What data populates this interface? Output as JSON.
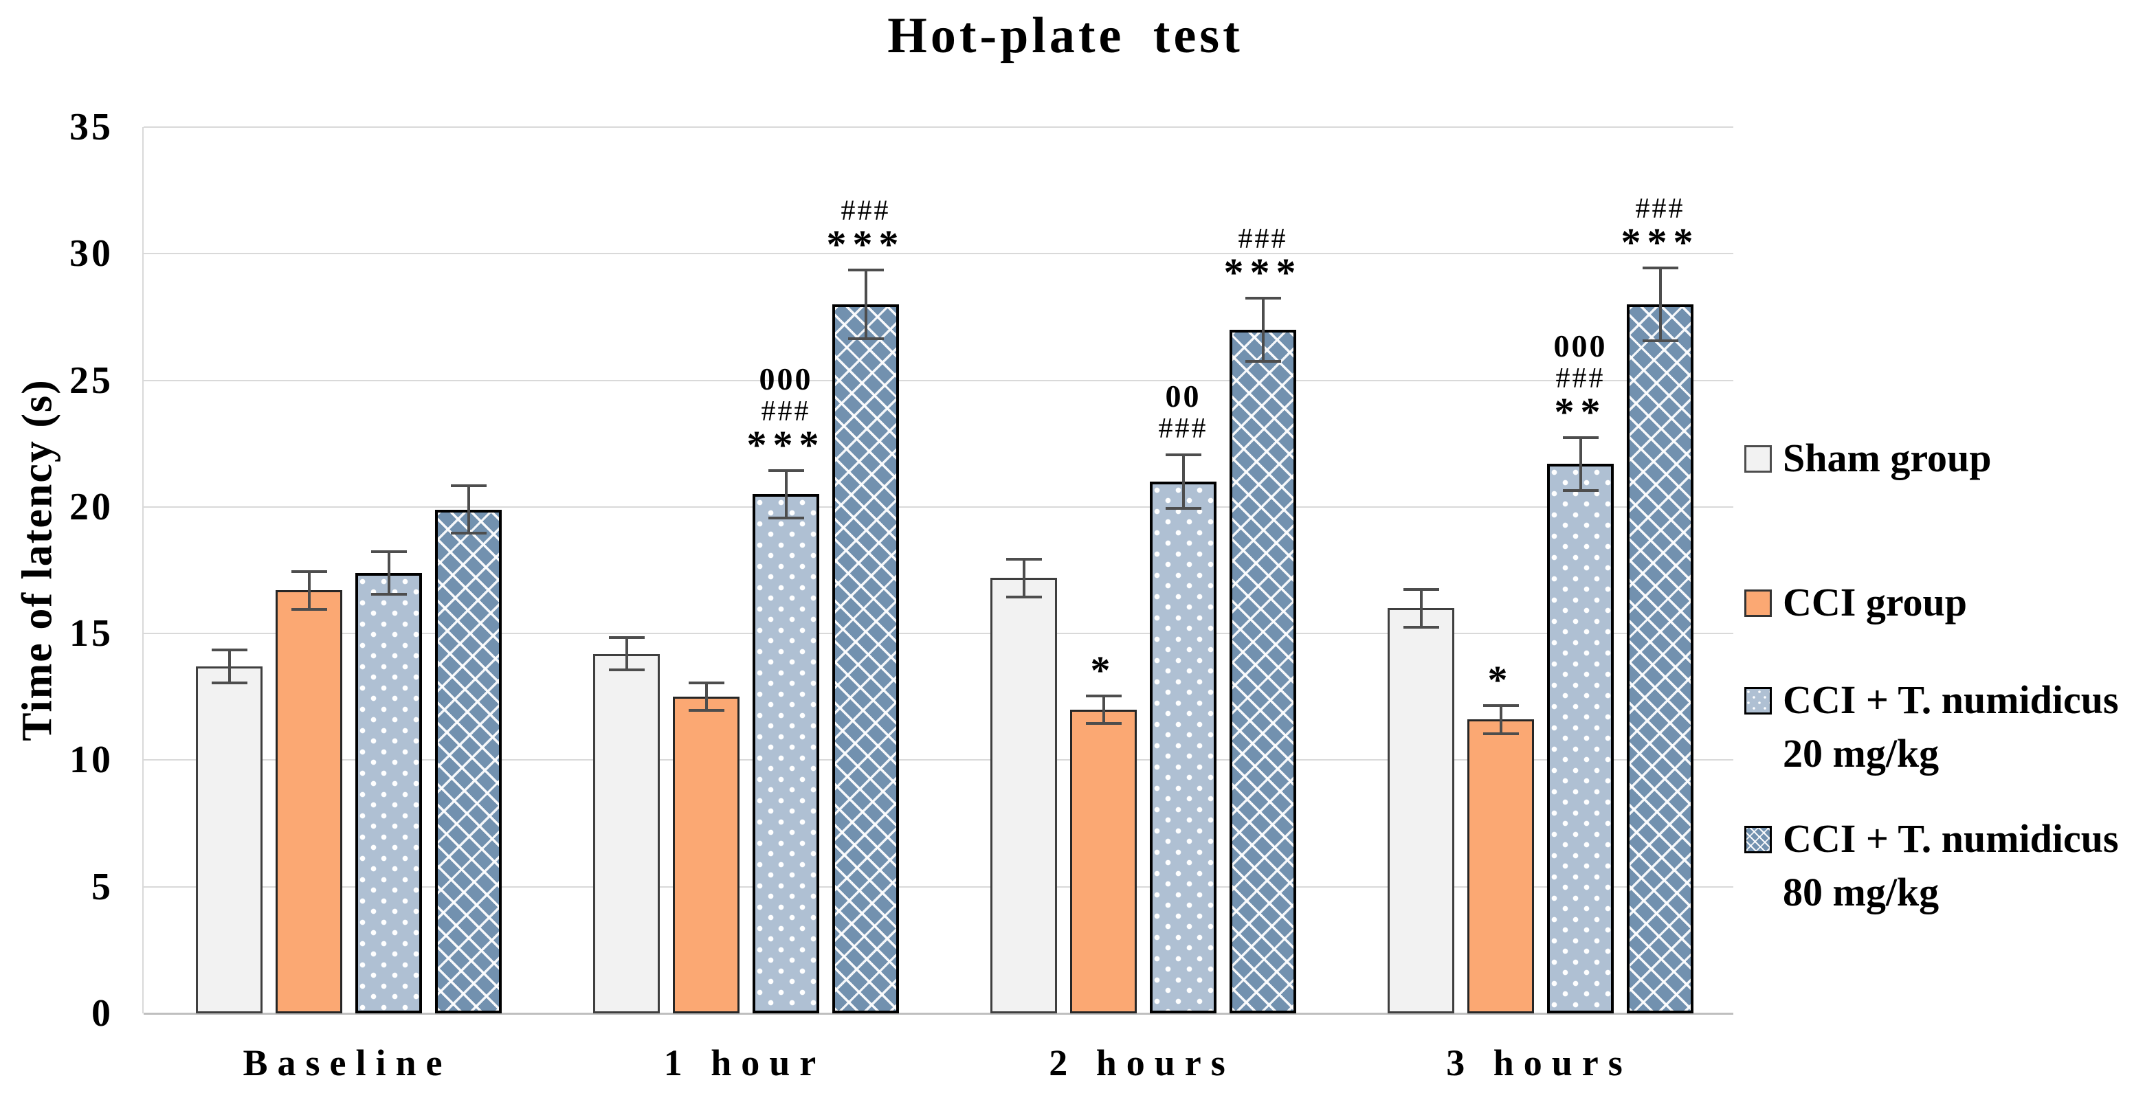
{
  "chart_data": {
    "type": "bar",
    "title": "Hot-plate test",
    "xlabel": "",
    "ylabel": "Time of latency (s)",
    "ylim": [
      0,
      35
    ],
    "ytick_step": 5,
    "yticks": [
      0,
      5,
      10,
      15,
      20,
      25,
      30,
      35
    ],
    "grid": "horizontal",
    "legend_position": "right",
    "categories": [
      "Baseline",
      "1 hour",
      "2 hours",
      "3 hours"
    ],
    "series": [
      {
        "name": "Sham group",
        "key": "sham",
        "legend_lines": [
          "Sham group"
        ],
        "fill": "#F2F2F2",
        "border": "#3F3F3F",
        "pattern": "none",
        "values": [
          13.7,
          14.2,
          17.2,
          16.0
        ],
        "errors": [
          0.7,
          0.7,
          0.8,
          0.8
        ],
        "annotations": [
          [],
          [],
          [],
          []
        ]
      },
      {
        "name": "CCI group",
        "key": "cci",
        "legend_lines": [
          "CCI group"
        ],
        "fill": "#FBA873",
        "border": "#262626",
        "pattern": "none",
        "values": [
          16.7,
          12.5,
          12.0,
          11.6
        ],
        "errors": [
          0.8,
          0.6,
          0.6,
          0.6
        ],
        "annotations": [
          [],
          [],
          [
            "*"
          ],
          [
            "*"
          ]
        ]
      },
      {
        "name": "CCI + T. numidicus 20 mg/kg",
        "key": "t20",
        "legend_lines": [
          "CCI + T. numidicus",
          "20 mg/kg"
        ],
        "fill": "#AFC0D3",
        "border": "#000000",
        "pattern": "dots",
        "values": [
          17.4,
          20.5,
          21.0,
          21.7
        ],
        "errors": [
          0.9,
          1.0,
          1.1,
          1.1
        ],
        "annotations": [
          [],
          [
            "000",
            "###",
            "***"
          ],
          [
            "00",
            "###"
          ],
          [
            "000",
            "###",
            "**"
          ]
        ]
      },
      {
        "name": "CCI + T. numidicus 80 mg/kg",
        "key": "t80",
        "legend_lines": [
          "CCI + T. numidicus",
          "80 mg/kg"
        ],
        "fill": "#7291AF",
        "border": "#000000",
        "pattern": "diagonal-brick",
        "values": [
          19.9,
          28.0,
          27.0,
          28.0
        ],
        "errors": [
          1.0,
          1.4,
          1.3,
          1.5
        ],
        "annotations": [
          [],
          [
            "###",
            "***"
          ],
          [
            "###",
            "***"
          ],
          [
            "###",
            "***"
          ]
        ]
      }
    ]
  }
}
